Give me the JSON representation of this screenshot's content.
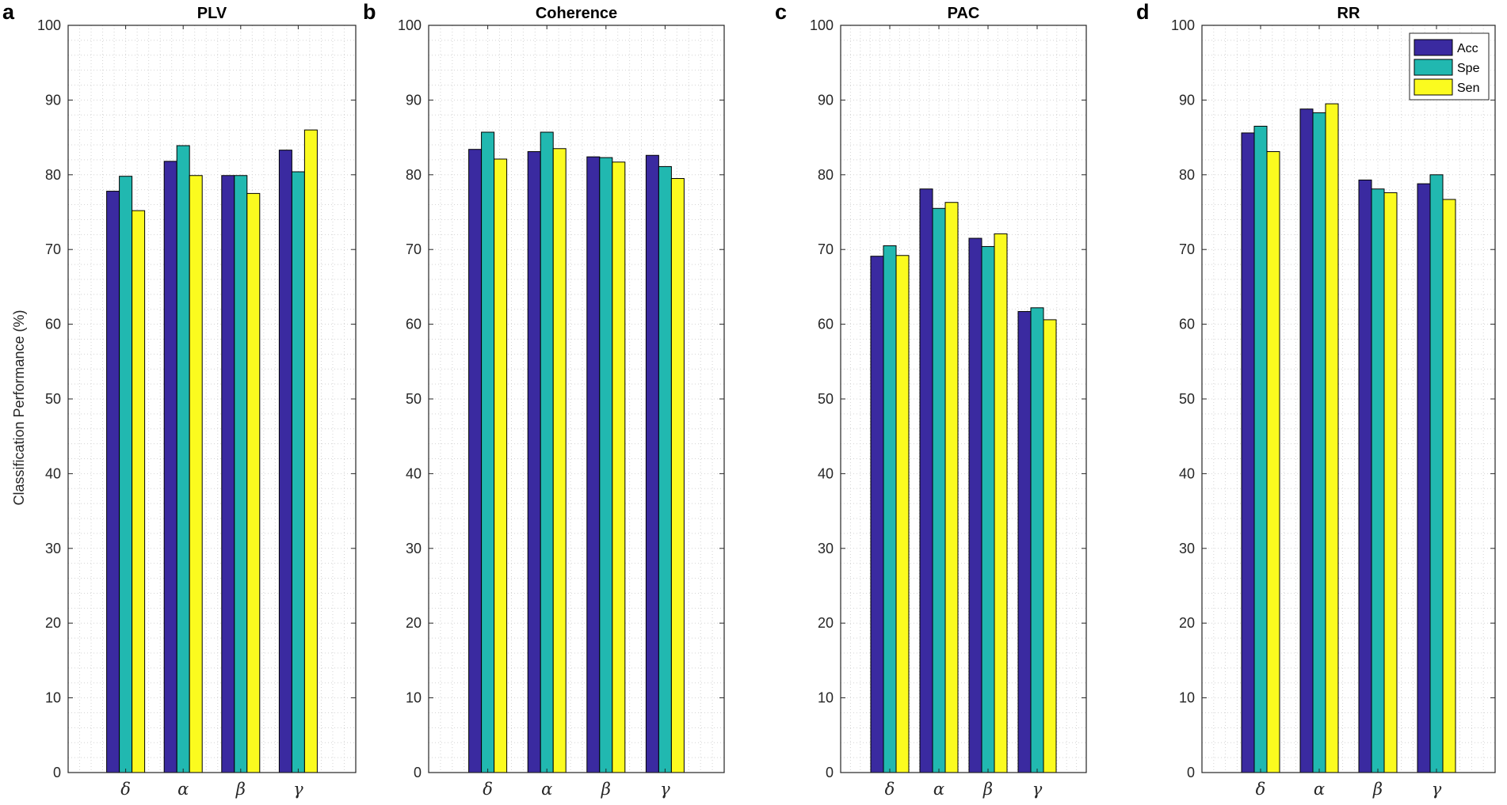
{
  "figure": {
    "ylabel": "Classification Performance (%)"
  },
  "legend": {
    "entries": [
      "Acc",
      "Spe",
      "Sen"
    ]
  },
  "colors": {
    "Acc": "#3a2aa0",
    "Spe": "#21b8b0",
    "Sen": "#fbfb1f"
  },
  "chart_data": [
    {
      "type": "bar",
      "panel_letter": "a",
      "title": "PLV",
      "categories": [
        "δ",
        "α",
        "β",
        "γ"
      ],
      "ylabel": "Classification Performance (%)",
      "ylim": [
        0,
        100
      ],
      "yticks": [
        0,
        10,
        20,
        30,
        40,
        50,
        60,
        70,
        80,
        90,
        100
      ],
      "grid": "on (major and minor)",
      "series": [
        {
          "name": "Acc",
          "values": [
            77.8,
            81.8,
            79.9,
            83.3
          ]
        },
        {
          "name": "Spe",
          "values": [
            79.8,
            83.9,
            79.9,
            80.4
          ]
        },
        {
          "name": "Sen",
          "values": [
            75.2,
            79.9,
            77.5,
            86.0
          ]
        }
      ]
    },
    {
      "type": "bar",
      "panel_letter": "b",
      "title": "Coherence",
      "categories": [
        "δ",
        "α",
        "β",
        "γ"
      ],
      "ylim": [
        0,
        100
      ],
      "yticks": [
        0,
        10,
        20,
        30,
        40,
        50,
        60,
        70,
        80,
        90,
        100
      ],
      "grid": "on (major and minor)",
      "series": [
        {
          "name": "Acc",
          "values": [
            83.4,
            83.1,
            82.4,
            82.6
          ]
        },
        {
          "name": "Spe",
          "values": [
            85.7,
            85.7,
            82.3,
            81.1
          ]
        },
        {
          "name": "Sen",
          "values": [
            82.1,
            83.5,
            81.7,
            79.5
          ]
        }
      ]
    },
    {
      "type": "bar",
      "panel_letter": "c",
      "title": "PAC",
      "categories": [
        "δ",
        "α",
        "β",
        "γ"
      ],
      "ylim": [
        0,
        100
      ],
      "yticks": [
        0,
        10,
        20,
        30,
        40,
        50,
        60,
        70,
        80,
        90,
        100
      ],
      "grid": "on (major and minor)",
      "series": [
        {
          "name": "Acc",
          "values": [
            69.1,
            78.1,
            71.5,
            61.7
          ]
        },
        {
          "name": "Spe",
          "values": [
            70.5,
            75.5,
            70.4,
            62.2
          ]
        },
        {
          "name": "Sen",
          "values": [
            69.2,
            76.3,
            72.1,
            60.6
          ]
        }
      ]
    },
    {
      "type": "bar",
      "panel_letter": "d",
      "title": "RR",
      "categories": [
        "δ",
        "α",
        "β",
        "γ"
      ],
      "ylim": [
        0,
        100
      ],
      "yticks": [
        0,
        10,
        20,
        30,
        40,
        50,
        60,
        70,
        80,
        90,
        100
      ],
      "grid": "on (major and minor)",
      "legend": "top-right",
      "series": [
        {
          "name": "Acc",
          "values": [
            85.6,
            88.8,
            79.3,
            78.8
          ]
        },
        {
          "name": "Spe",
          "values": [
            86.5,
            88.3,
            78.1,
            80.0
          ]
        },
        {
          "name": "Sen",
          "values": [
            83.1,
            89.5,
            77.6,
            76.7
          ]
        }
      ]
    }
  ]
}
